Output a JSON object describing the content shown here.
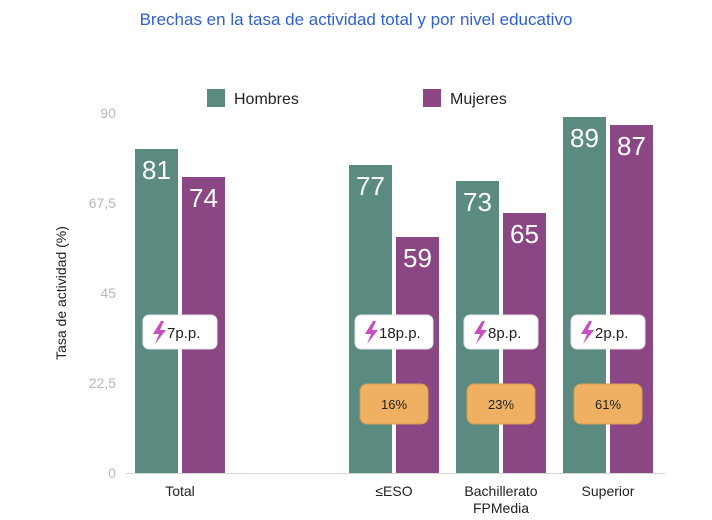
{
  "chart_data": {
    "type": "bar",
    "title": "Brechas en la tasa de actividad total y por nivel educativo",
    "xlabel": "",
    "ylabel": "Tasa de actividad (%)",
    "ylim": [
      0,
      90
    ],
    "yticks": [
      0,
      22.5,
      45,
      67.5,
      90
    ],
    "ytick_labels": [
      "0",
      "22,5",
      "45",
      "67,5",
      "90"
    ],
    "grid": false,
    "legend_position": "top",
    "categories": [
      "Total",
      "≤ESO",
      "Bachillerato\nFPMedia",
      "Superior"
    ],
    "series": [
      {
        "name": "Hombres",
        "color": "#5b8b80",
        "values": [
          81,
          77,
          73,
          89
        ]
      },
      {
        "name": "Mujeres",
        "color": "#8b4783",
        "values": [
          74,
          59,
          65,
          87
        ]
      }
    ],
    "gap_labels": [
      "7p.p.",
      "18p.p.",
      "8p.p.",
      "2p.p."
    ],
    "gap_icon": "lightning-bolt-icon",
    "gap_icon_color": "#c94fc0",
    "percent_badges": [
      null,
      "16%",
      "23%",
      "61%"
    ],
    "badge_color": "#f0b062",
    "axis_text_color": "#b8b8b8"
  }
}
